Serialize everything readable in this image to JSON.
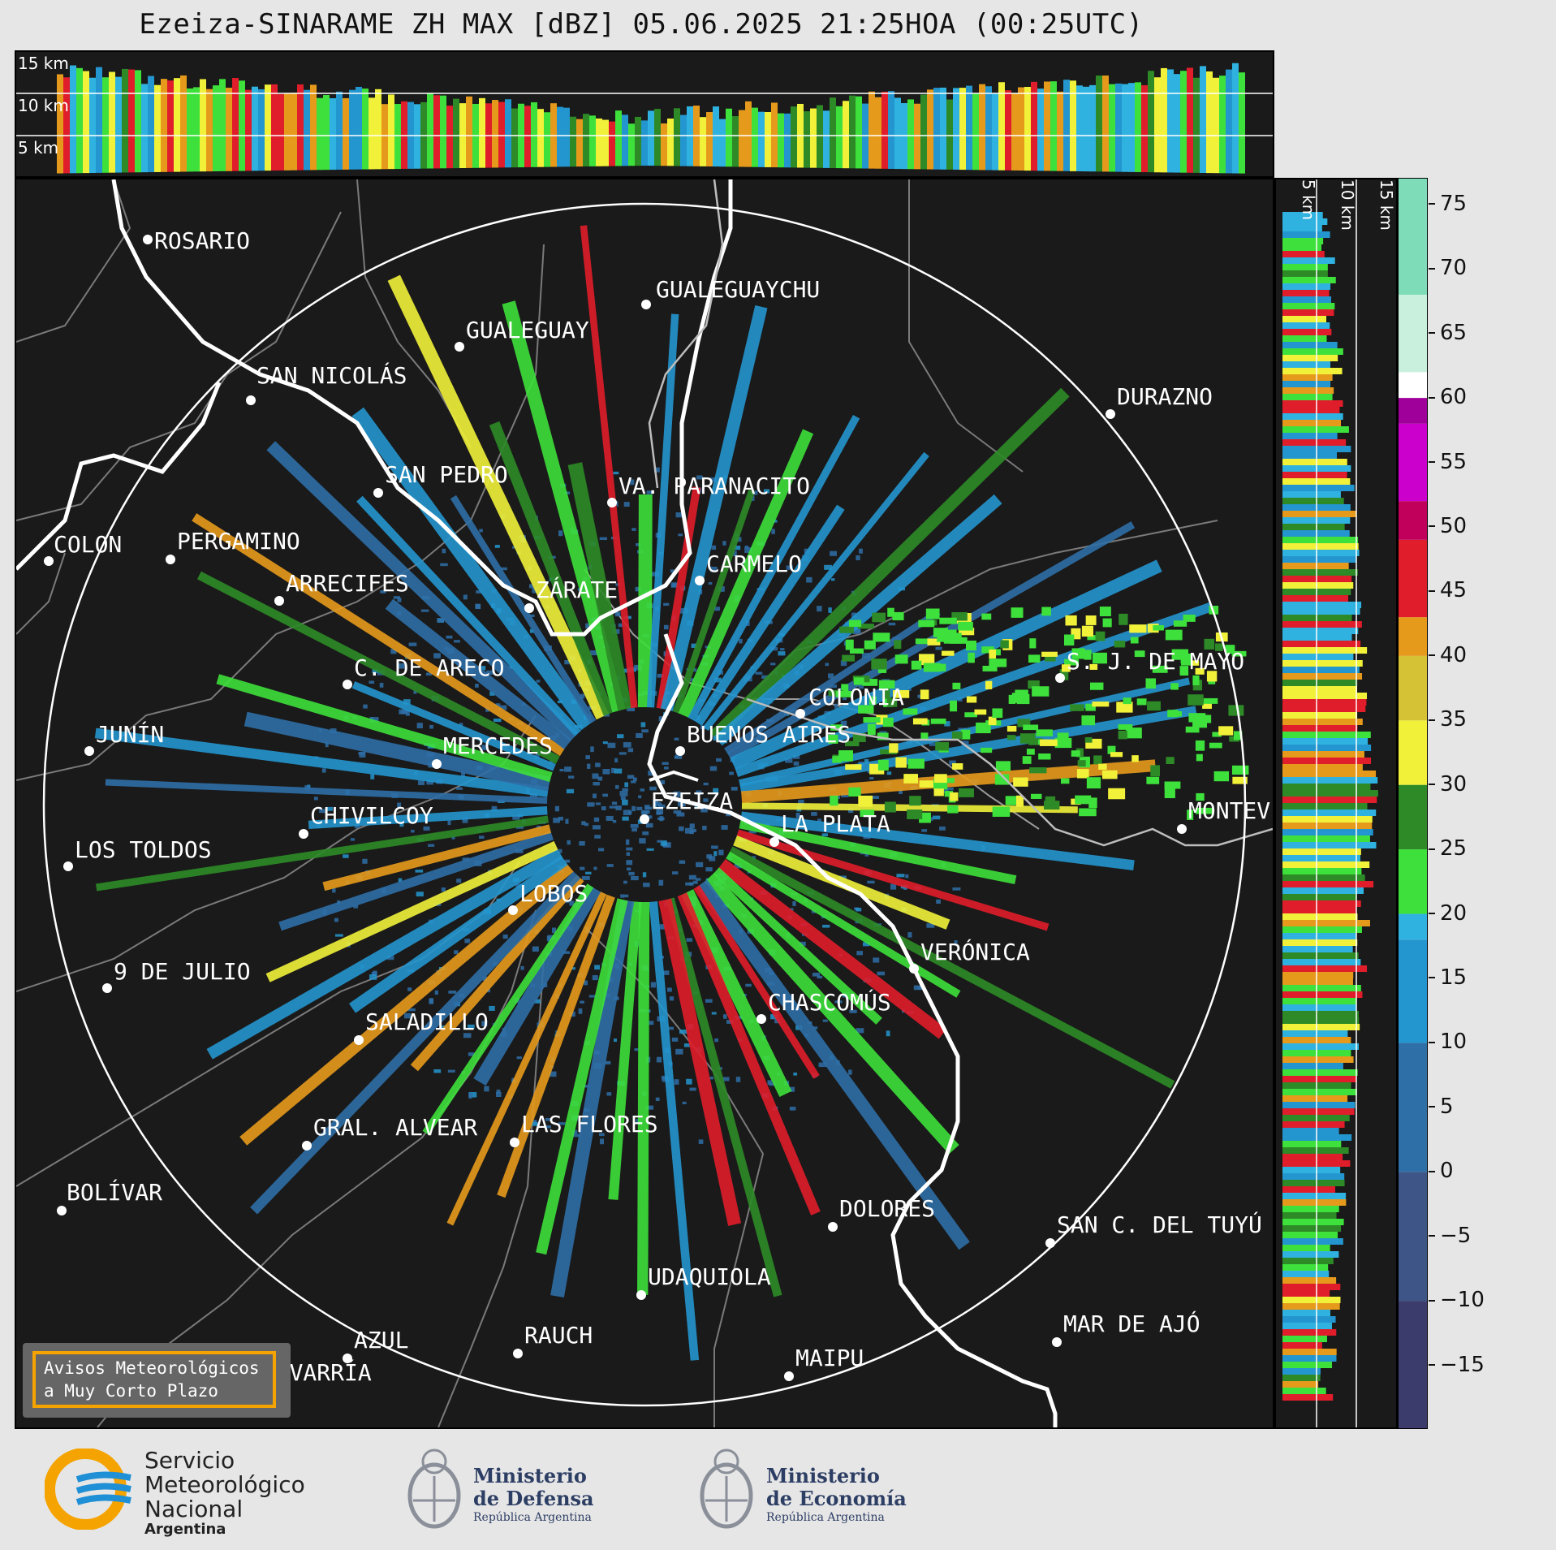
{
  "title": "Ezeiza-SINARAME ZH MAX [dBZ] 05.06.2025 21:25HOA (00:25UTC)",
  "top_panel": {
    "height_labels": [
      "15 km",
      "10 km",
      "5 km"
    ]
  },
  "right_panel": {
    "height_labels": [
      "5 km",
      "10 km",
      "15 km"
    ]
  },
  "colorbar": {
    "unit": "dBZ",
    "ticks": [
      "75",
      "70",
      "65",
      "60",
      "55",
      "50",
      "45",
      "40",
      "35",
      "30",
      "25",
      "20",
      "15",
      "10",
      "5",
      "0",
      "−5",
      "−10",
      "−15"
    ],
    "range": [
      -20,
      77
    ],
    "color_stops": [
      {
        "from": -20,
        "to": -10,
        "color": "#3b3c6b"
      },
      {
        "from": -10,
        "to": 0,
        "color": "#3d5587"
      },
      {
        "from": 0,
        "to": 10,
        "color": "#2f6fa7"
      },
      {
        "from": 10,
        "to": 18,
        "color": "#2496cf"
      },
      {
        "from": 18,
        "to": 20,
        "color": "#2fb2e0"
      },
      {
        "from": 20,
        "to": 25,
        "color": "#3ee03b"
      },
      {
        "from": 25,
        "to": 30,
        "color": "#2d8a27"
      },
      {
        "from": 30,
        "to": 35,
        "color": "#f1f13a"
      },
      {
        "from": 35,
        "to": 40,
        "color": "#d6c235"
      },
      {
        "from": 40,
        "to": 43,
        "color": "#e69a1c"
      },
      {
        "from": 43,
        "to": 49,
        "color": "#e01d2a"
      },
      {
        "from": 49,
        "to": 52,
        "color": "#c0005a"
      },
      {
        "from": 52,
        "to": 58,
        "color": "#cc00cc"
      },
      {
        "from": 58,
        "to": 60,
        "color": "#a0009a"
      },
      {
        "from": 60,
        "to": 62,
        "color": "#ffffff"
      },
      {
        "from": 62,
        "to": 68,
        "color": "#c9f0dc"
      },
      {
        "from": 68,
        "to": 77,
        "color": "#7fdcb8"
      }
    ]
  },
  "map": {
    "radar_site": "EZEIZA",
    "cities": [
      {
        "name": "ROSARIO"
      },
      {
        "name": "GUALEGUAYCHU"
      },
      {
        "name": "GUALEGUAY"
      },
      {
        "name": "SAN NICOLÁS"
      },
      {
        "name": "DURAZNO"
      },
      {
        "name": "SAN PEDRO"
      },
      {
        "name": "VA. PARANACITO"
      },
      {
        "name": "COLON"
      },
      {
        "name": "PERGAMINO"
      },
      {
        "name": "CARMELO"
      },
      {
        "name": "ARRECIFES"
      },
      {
        "name": "ZÁRATE"
      },
      {
        "name": "S. J. DE MAYO"
      },
      {
        "name": "C. DE ARECO"
      },
      {
        "name": "COLONIA"
      },
      {
        "name": "JUNÍN"
      },
      {
        "name": "BUENOS AIRES"
      },
      {
        "name": "MERCEDES"
      },
      {
        "name": "EZEIZA"
      },
      {
        "name": "MONTEV"
      },
      {
        "name": "CHIVILCOY"
      },
      {
        "name": "LA PLATA"
      },
      {
        "name": "LOS TOLDOS"
      },
      {
        "name": "LOBOS"
      },
      {
        "name": "VERÓNICA"
      },
      {
        "name": "9 DE JULIO"
      },
      {
        "name": "CHASCOMÚS"
      },
      {
        "name": "SALADILLO"
      },
      {
        "name": "GRAL. ALVEAR"
      },
      {
        "name": "LAS FLORES"
      },
      {
        "name": "BOLÍVAR"
      },
      {
        "name": "DOLORES"
      },
      {
        "name": "SAN C. DEL TUYÚ"
      },
      {
        "name": "UDAQUIOLA"
      },
      {
        "name": "MAR DE AJÓ"
      },
      {
        "name": "AZUL"
      },
      {
        "name": "RAUCH"
      },
      {
        "name": "OLAVARRÍA"
      },
      {
        "name": "MAIPU"
      }
    ]
  },
  "alert_box": {
    "line1": "Avisos Meteorológicos",
    "line2": "a Muy Corto Plazo"
  },
  "footer": {
    "smn": {
      "line1": "Servicio",
      "line2": "Meteorológico",
      "line3": "Nacional",
      "line4": "Argentina"
    },
    "defensa": {
      "line1": "Ministerio",
      "line2": "de Defensa",
      "line3": "República Argentina"
    },
    "economia": {
      "line1": "Ministerio",
      "line2": "de Economía",
      "line3": "República Argentina"
    }
  },
  "colors": {
    "background": "#1a1a1a",
    "frame": "#e6e6e6",
    "alert_border": "#f5a300",
    "smn_blue": "#1f8fd6",
    "smn_orange": "#f5a300"
  }
}
